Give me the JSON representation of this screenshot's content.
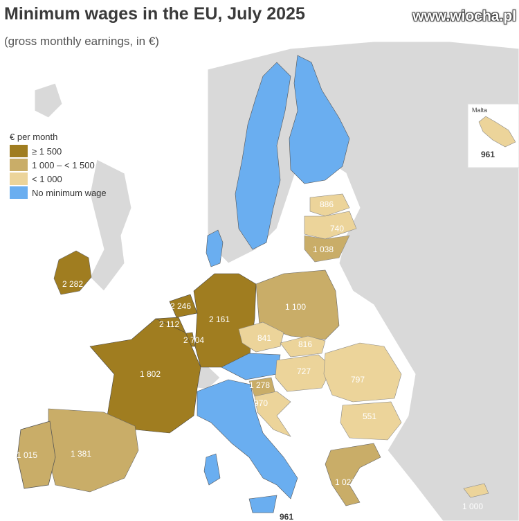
{
  "title": "Minimum wages in the EU, July 2025",
  "subtitle": "(gross monthly earnings, in €)",
  "watermark": "www.wiocha.pl",
  "legend": {
    "heading": "€ per month",
    "items": [
      {
        "label": "≥ 1 500",
        "color": "#a07d20"
      },
      {
        "label": "1 000 – < 1 500",
        "color": "#c9ad68"
      },
      {
        "label": "< 1 000",
        "color": "#ecd49a"
      },
      {
        "label": "No minimum wage",
        "color": "#6aaef0"
      }
    ]
  },
  "inset": {
    "title": "Malta",
    "value": "961"
  },
  "values": {
    "ireland": "2 282",
    "netherlands": "2 246",
    "belgium": "2 112",
    "luxembourg": "2 704",
    "germany": "2 161",
    "france": "1 802",
    "spain": "1 381",
    "portugal": "1 015",
    "poland": "1 100",
    "czechia": "841",
    "slovakia": "816",
    "hungary": "727",
    "romania": "797",
    "bulgaria": "551",
    "croatia": "970",
    "slovenia": "1 278",
    "greece": "1 027",
    "cyprus": "1 000",
    "malta_bottom": "961",
    "estonia": "886",
    "latvia": "740",
    "lithuania": "1 038"
  }
}
